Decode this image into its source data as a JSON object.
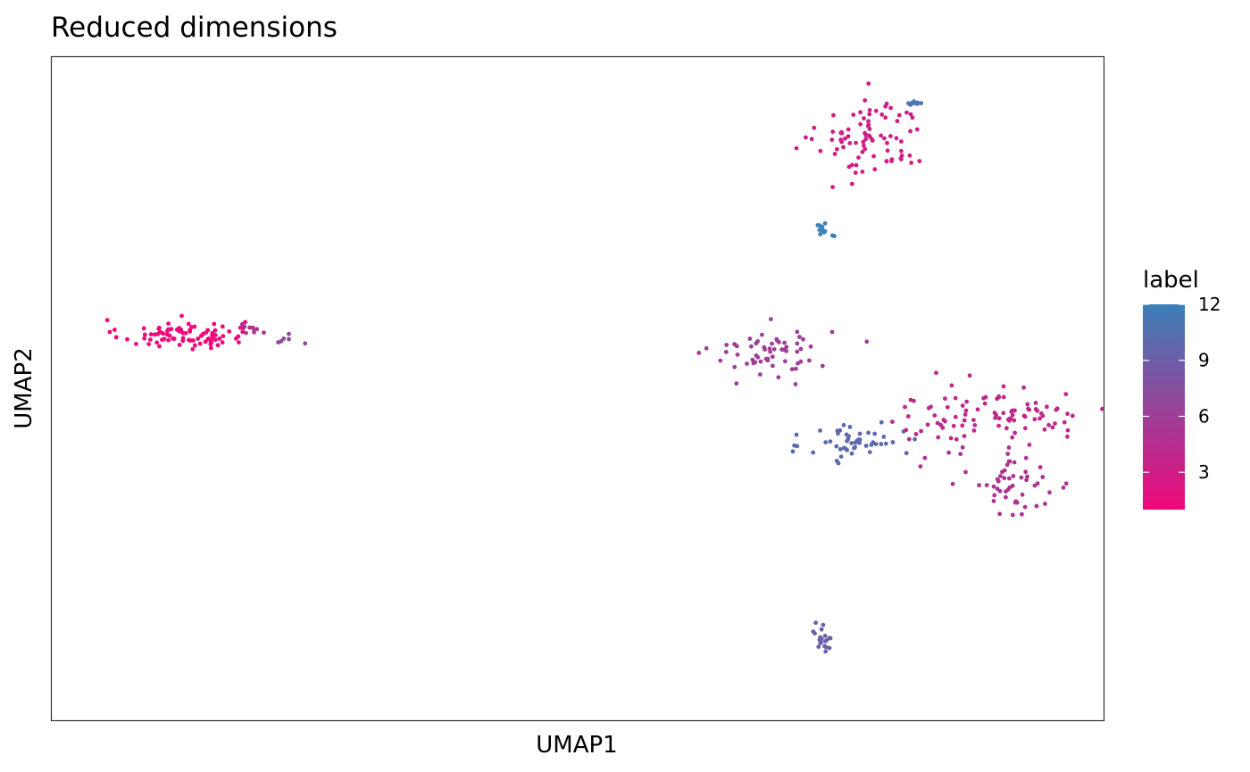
{
  "chart_data": {
    "type": "scatter",
    "title": "Reduced dimensions",
    "xlabel": "UMAP1",
    "ylabel": "UMAP2",
    "show_tick_labels": false,
    "grid": false,
    "panel_border": true,
    "xlim": [
      -11.5,
      6.2
    ],
    "ylim": [
      -8.5,
      7.5
    ],
    "color_scale": {
      "title": "label",
      "low_color": "#f0087a",
      "high_color": "#3b7fb8",
      "domain": [
        1,
        12
      ],
      "ticks": [
        3,
        6,
        9,
        12
      ],
      "placement": "right"
    },
    "clusters": [
      {
        "label": 1,
        "cx": -9.3,
        "cy": 0.8,
        "sx": 0.52,
        "sy": 0.18,
        "n": 88
      },
      {
        "label": 5,
        "cx": -8.1,
        "cy": 0.95,
        "sx": 0.16,
        "sy": 0.08,
        "n": 10
      },
      {
        "label": 7,
        "cx": -7.6,
        "cy": 0.7,
        "sx": 0.2,
        "sy": 0.06,
        "n": 6
      },
      {
        "label": 6,
        "cx": 0.6,
        "cy": 0.4,
        "sx": 0.5,
        "sy": 0.3,
        "n": 62
      },
      {
        "label": 3,
        "cx": 2.3,
        "cy": 5.5,
        "sx": 0.45,
        "sy": 0.5,
        "n": 85
      },
      {
        "label": 11,
        "cx": 3.0,
        "cy": 6.4,
        "sx": 0.08,
        "sy": 0.04,
        "n": 8
      },
      {
        "label": 12,
        "cx": 1.5,
        "cy": 3.35,
        "sx": 0.08,
        "sy": 0.1,
        "n": 12
      },
      {
        "label": 10,
        "cx": 2.0,
        "cy": -1.8,
        "sx": 0.4,
        "sy": 0.25,
        "n": 50
      },
      {
        "label": 4,
        "cx": 4.4,
        "cy": -1.1,
        "sx": 0.95,
        "sy": 0.35,
        "n": 95
      },
      {
        "label": 5,
        "cx": 4.6,
        "cy": -2.8,
        "sx": 0.55,
        "sy": 0.4,
        "n": 55
      },
      {
        "label": 9,
        "cx": 1.5,
        "cy": -6.5,
        "sx": 0.08,
        "sy": 0.2,
        "n": 20
      }
    ]
  }
}
